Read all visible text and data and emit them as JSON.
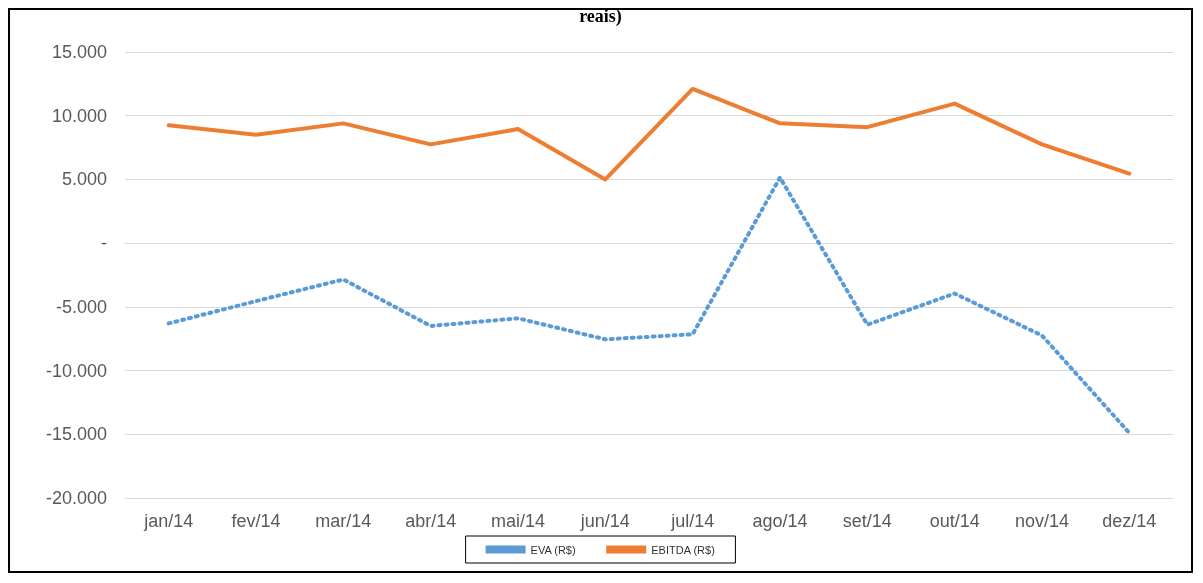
{
  "chart_data": {
    "type": "line",
    "title": "reais)",
    "categories": [
      "jan/14",
      "fev/14",
      "mar/14",
      "abr/14",
      "mai/14",
      "jun/14",
      "jul/14",
      "ago/14",
      "set/14",
      "out/14",
      "nov/14",
      "dez/14"
    ],
    "series": [
      {
        "name": "EVA (R$)",
        "color": "#5b9bd5",
        "line_style": "dotted",
        "values": [
          -6300,
          -4550,
          -2850,
          -6500,
          -5900,
          -7550,
          -7150,
          5150,
          -6400,
          -3950,
          -7250,
          -14900
        ]
      },
      {
        "name": "EBITDA (R$)",
        "color": "#ed7d31",
        "line_style": "solid",
        "values": [
          9250,
          8500,
          9400,
          7750,
          8950,
          5000,
          12100,
          9400,
          9100,
          10950,
          7750,
          5450
        ]
      }
    ],
    "ylim": [
      -20000,
      15000
    ],
    "yticks": [
      {
        "value": -20000,
        "label": "-20.000"
      },
      {
        "value": -15000,
        "label": "-15.000"
      },
      {
        "value": -10000,
        "label": "-10.000"
      },
      {
        "value": -5000,
        "label": "-5.000"
      },
      {
        "value": 0,
        "label": "-"
      },
      {
        "value": 5000,
        "label": "5.000"
      },
      {
        "value": 10000,
        "label": "10.000"
      },
      {
        "value": 15000,
        "label": "15.000"
      }
    ],
    "grid": "y",
    "legend": "bottom",
    "marker": "none"
  }
}
